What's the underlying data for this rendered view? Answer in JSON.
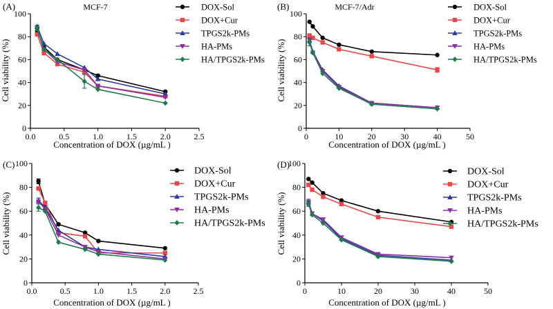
{
  "chart_data": [
    {
      "type": "line",
      "panel_label": "(A)",
      "title": "MCF-7",
      "xlabel": "Concentration of DOX (µg/mL )",
      "ylabel": "Cell viability (%)",
      "xlim": [
        0,
        2.5
      ],
      "ylim": [
        0,
        100
      ],
      "xticks": [
        0.0,
        0.5,
        1.0,
        1.5,
        2.0,
        2.5
      ],
      "xtick_labels": [
        "0.0",
        "0.5",
        "1.0",
        "1.5",
        "2.0",
        "2.5"
      ],
      "yticks": [
        0,
        20,
        40,
        60,
        80,
        100
      ],
      "ytick_labels": [
        "0",
        "20",
        "40",
        "60",
        "80",
        "100"
      ],
      "legend_size": "small",
      "x": [
        0.1,
        0.2,
        0.4,
        0.8,
        1.0,
        2.0
      ],
      "series": [
        {
          "name": "DOX-Sol",
          "color": "#000000",
          "marker": "circle",
          "values": [
            85,
            71,
            60,
            51,
            46,
            32
          ],
          "errors": [
            2,
            2,
            0,
            0,
            1,
            0
          ]
        },
        {
          "name": "DOX+Cur",
          "color": "#e8474c",
          "marker": "square",
          "values": [
            82,
            66,
            56,
            49,
            37,
            28
          ],
          "errors": [
            1,
            2,
            0,
            0,
            0,
            0
          ]
        },
        {
          "name": "TPGS2k-PMs",
          "color": "#2b3b9f",
          "marker": "triangle-up",
          "values": [
            89,
            74,
            65,
            53,
            43,
            30
          ],
          "errors": [
            1,
            0,
            0,
            0,
            0,
            0
          ]
        },
        {
          "name": "HA-PMs",
          "color": "#8a2ea0",
          "marker": "triangle-down",
          "values": [
            87,
            69,
            58,
            51,
            37,
            27
          ],
          "errors": [
            1,
            1,
            0,
            0,
            0,
            0
          ]
        },
        {
          "name": "HA/TPGS2k-PMs",
          "color": "#1d7a4a",
          "marker": "diamond",
          "values": [
            87,
            69,
            60,
            41,
            34,
            22
          ],
          "errors": [
            2,
            0,
            0,
            6,
            0,
            0
          ]
        }
      ]
    },
    {
      "type": "line",
      "panel_label": "(B)",
      "title": "MCF-7/Adr",
      "xlabel": "Concentration of DOX (µg/mL )",
      "ylabel": "Cell viability (%)",
      "xlim": [
        0,
        50
      ],
      "ylim": [
        0,
        100
      ],
      "xticks": [
        0,
        10,
        20,
        30,
        40,
        50
      ],
      "xtick_labels": [
        "0",
        "10",
        "20",
        "30",
        "40",
        "50"
      ],
      "yticks": [
        0,
        20,
        40,
        60,
        80,
        100
      ],
      "ytick_labels": [
        "0",
        "20",
        "40",
        "60",
        "80",
        "100"
      ],
      "legend_size": "small",
      "x": [
        1,
        2,
        5,
        10,
        20,
        40
      ],
      "series": [
        {
          "name": "DOX-Sol",
          "color": "#000000",
          "marker": "circle",
          "values": [
            93,
            89,
            79,
            73,
            67,
            64
          ],
          "errors": [
            0,
            0,
            0,
            0,
            0,
            0
          ]
        },
        {
          "name": "DOX+Cur",
          "color": "#e8474c",
          "marker": "square",
          "values": [
            81,
            79,
            75,
            69,
            63,
            51
          ],
          "errors": [
            0,
            0,
            0,
            0,
            0,
            2
          ]
        },
        {
          "name": "TPGS2k-PMs",
          "color": "#2b3b9f",
          "marker": "triangle-up",
          "values": [
            77,
            67,
            51,
            37,
            22,
            18
          ],
          "errors": [
            2,
            0,
            0,
            0,
            0,
            0
          ]
        },
        {
          "name": "HA-PMs",
          "color": "#8a2ea0",
          "marker": "triangle-down",
          "values": [
            77,
            66,
            50,
            36,
            22,
            18
          ],
          "errors": [
            2,
            0,
            0,
            0,
            0,
            0
          ]
        },
        {
          "name": "HA/TPGS2k-PMs",
          "color": "#1d7a4a",
          "marker": "diamond",
          "values": [
            75,
            66,
            48,
            35,
            21,
            17
          ],
          "errors": [
            3,
            0,
            0,
            0,
            0,
            0
          ]
        }
      ]
    },
    {
      "type": "line",
      "panel_label": "(C)",
      "title": "",
      "xlabel": "Concentration of DOX (µg/mL )",
      "ylabel": "Cell viability (%)",
      "xlim": [
        0,
        2.5
      ],
      "ylim": [
        0,
        100
      ],
      "xticks": [
        0.0,
        0.5,
        1.0,
        1.5,
        2.0,
        2.5
      ],
      "xtick_labels": [
        "0.0",
        "0.5",
        "1.0",
        "1.5",
        "2.0",
        "2.5"
      ],
      "yticks": [
        0,
        20,
        40,
        60,
        80,
        100
      ],
      "ytick_labels": [
        "0",
        "20",
        "40",
        "60",
        "80",
        "100"
      ],
      "legend_size": "large",
      "x": [
        0.1,
        0.2,
        0.4,
        0.8,
        1.0,
        2.0
      ],
      "series": [
        {
          "name": "DOX-Sol",
          "color": "#000000",
          "marker": "circle",
          "values": [
            85,
            66,
            49,
            42,
            35,
            29
          ],
          "errors": [
            2,
            1,
            1,
            0,
            0,
            0
          ]
        },
        {
          "name": "DOX+Cur",
          "color": "#e8474c",
          "marker": "square",
          "values": [
            79,
            67,
            42,
            39,
            25,
            25
          ],
          "errors": [
            1,
            1,
            1,
            0,
            0,
            0
          ]
        },
        {
          "name": "TPGS2k-PMs",
          "color": "#2b3b9f",
          "marker": "triangle-up",
          "values": [
            69,
            63,
            44,
            30,
            28,
            22
          ],
          "errors": [
            2,
            1,
            0,
            0,
            0,
            0
          ]
        },
        {
          "name": "HA-PMs",
          "color": "#8a2ea0",
          "marker": "triangle-down",
          "values": [
            68,
            62,
            40,
            30,
            26,
            20
          ],
          "errors": [
            1,
            1,
            0,
            0,
            0,
            0
          ]
        },
        {
          "name": "HA/TPGS2k-PMs",
          "color": "#1d7a4a",
          "marker": "diamond",
          "values": [
            63,
            60,
            34,
            28,
            24,
            19
          ],
          "errors": [
            3,
            0,
            0,
            0,
            0,
            0
          ]
        }
      ]
    },
    {
      "type": "line",
      "panel_label": "(D)",
      "title": "",
      "xlabel": "Concentration of DOX (µg/mL )",
      "ylabel": "Cell viability (%)",
      "xlim": [
        0,
        50
      ],
      "ylim": [
        0,
        100
      ],
      "xticks": [
        0,
        10,
        20,
        30,
        40,
        50
      ],
      "xtick_labels": [
        "0",
        "10",
        "20",
        "30",
        "40",
        "50"
      ],
      "yticks": [
        0,
        20,
        40,
        60,
        80,
        100
      ],
      "ytick_labels": [
        "0",
        "20",
        "40",
        "60",
        "80",
        "100"
      ],
      "legend_size": "large",
      "x": [
        1,
        2,
        5,
        10,
        20,
        40
      ],
      "series": [
        {
          "name": "DOX-Sol",
          "color": "#000000",
          "marker": "circle",
          "values": [
            87,
            84,
            75,
            69,
            60,
            51
          ],
          "errors": [
            0,
            0,
            0,
            0,
            0,
            0
          ]
        },
        {
          "name": "DOX+Cur",
          "color": "#e8474c",
          "marker": "square",
          "values": [
            82,
            78,
            72,
            66,
            55,
            47
          ],
          "errors": [
            0,
            0,
            0,
            0,
            0,
            0
          ]
        },
        {
          "name": "TPGS2k-PMs",
          "color": "#2b3b9f",
          "marker": "triangle-up",
          "values": [
            68,
            58,
            52,
            37,
            23,
            19
          ],
          "errors": [
            2,
            0,
            0,
            0,
            0,
            0
          ]
        },
        {
          "name": "HA-PMs",
          "color": "#8a2ea0",
          "marker": "triangle-down",
          "values": [
            67,
            58,
            53,
            38,
            24,
            21
          ],
          "errors": [
            2,
            0,
            0,
            0,
            0,
            0
          ]
        },
        {
          "name": "HA/TPGS2k-PMs",
          "color": "#1d7a4a",
          "marker": "diamond",
          "values": [
            66,
            57,
            50,
            36,
            22,
            18
          ],
          "errors": [
            2,
            0,
            0,
            0,
            0,
            0
          ]
        }
      ]
    }
  ]
}
